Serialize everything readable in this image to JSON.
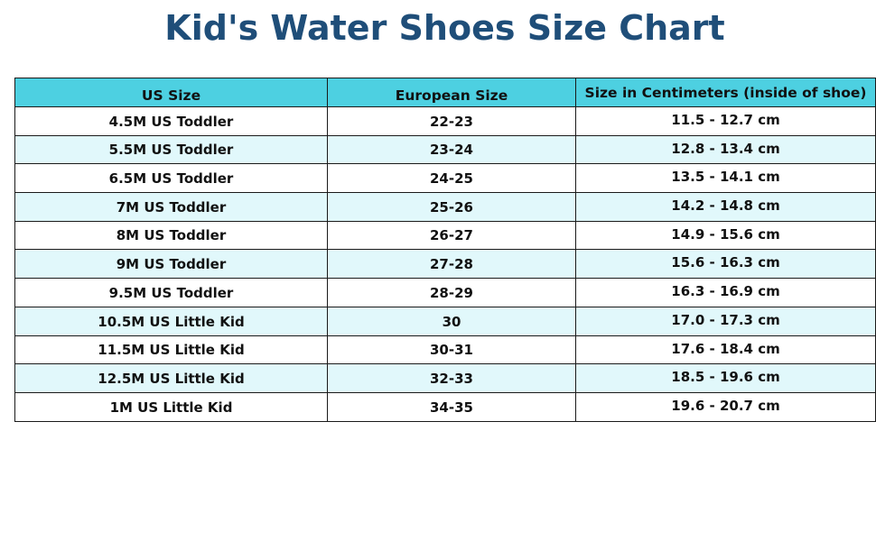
{
  "title": "Kid's Water Shoes Size Chart",
  "colors": {
    "title": "#1f4e79",
    "header_bg": "#4dd0e1",
    "alt_row_bg": "#e1f8fb"
  },
  "table": {
    "headers": [
      "US Size",
      "European Size",
      "Size in Centimeters (inside of shoe)"
    ],
    "rows": [
      [
        "4.5M US Toddler",
        "22-23",
        "11.5 - 12.7 cm"
      ],
      [
        "5.5M US Toddler",
        "23-24",
        "12.8 - 13.4 cm"
      ],
      [
        "6.5M US Toddler",
        "24-25",
        "13.5 - 14.1 cm"
      ],
      [
        "7M US Toddler",
        "25-26",
        "14.2 - 14.8 cm"
      ],
      [
        "8M US Toddler",
        "26-27",
        "14.9 - 15.6 cm"
      ],
      [
        "9M US Toddler",
        "27-28",
        "15.6 - 16.3 cm"
      ],
      [
        "9.5M US Toddler",
        "28-29",
        "16.3 - 16.9 cm"
      ],
      [
        "10.5M US Little Kid",
        "30",
        "17.0 - 17.3 cm"
      ],
      [
        "11.5M US Little Kid",
        "30-31",
        "17.6 - 18.4 cm"
      ],
      [
        "12.5M US Little Kid",
        "32-33",
        "18.5 - 19.6 cm"
      ],
      [
        "1M US Little Kid",
        "34-35",
        "19.6 - 20.7 cm"
      ]
    ]
  }
}
